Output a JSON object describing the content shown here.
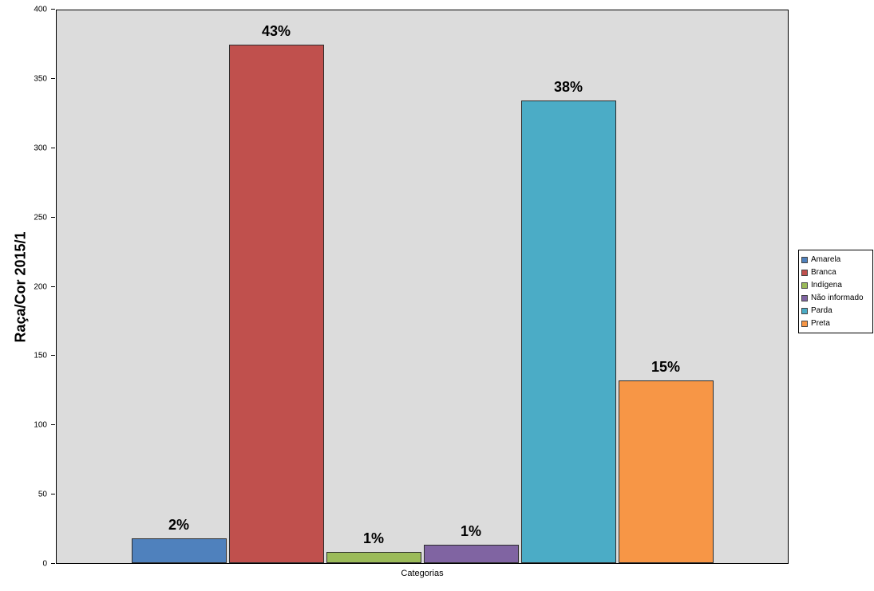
{
  "chart_data": {
    "type": "bar",
    "title": "",
    "ylabel": "Raça/Cor 2015/1",
    "xlabel": "Categorias",
    "ylim": [
      0,
      400
    ],
    "yticks": [
      0,
      50,
      100,
      150,
      200,
      250,
      300,
      350,
      400
    ],
    "grid": false,
    "legend_position": "right",
    "plot_background": "#dcdcdc",
    "series": [
      {
        "name": "Amarela",
        "value": 18,
        "percent_label": "2%",
        "color": "#4f81bd"
      },
      {
        "name": "Branca",
        "value": 375,
        "percent_label": "43%",
        "color": "#c0504d"
      },
      {
        "name": "Indígena",
        "value": 8,
        "percent_label": "1%",
        "color": "#9bbb59"
      },
      {
        "name": "Não informado",
        "value": 13,
        "percent_label": "1%",
        "color": "#8064a2"
      },
      {
        "name": "Parda",
        "value": 335,
        "percent_label": "38%",
        "color": "#4bacc6"
      },
      {
        "name": "Preta",
        "value": 132,
        "percent_label": "15%",
        "color": "#f79646"
      }
    ],
    "legend_entries": [
      "Amarela",
      "Branca",
      "Indígena",
      "Não informado",
      "Parda",
      "Preta"
    ]
  }
}
